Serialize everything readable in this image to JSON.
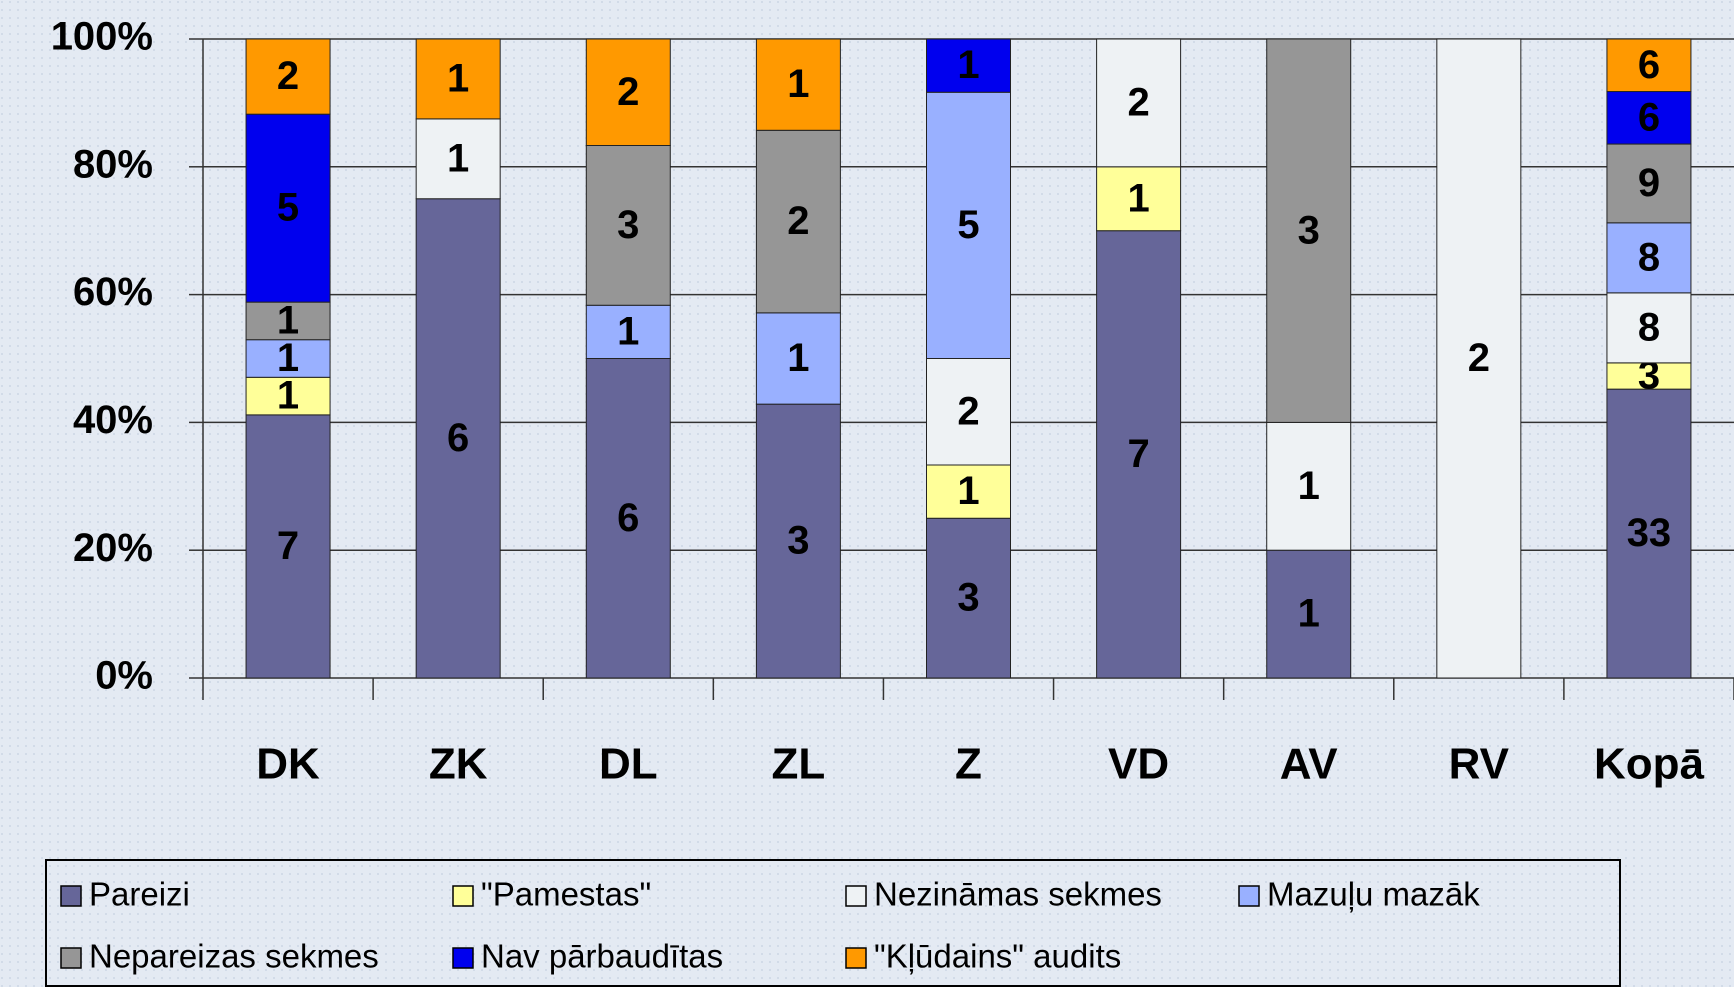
{
  "chart_data": {
    "type": "bar",
    "stacking": "percent",
    "categories": [
      "DK",
      "ZK",
      "DL",
      "ZL",
      "Z",
      "VD",
      "AV",
      "RV",
      "Kopā"
    ],
    "series": [
      {
        "name": "Pareizi",
        "color": "#666699",
        "values": [
          7,
          6,
          6,
          3,
          3,
          7,
          1,
          null,
          33
        ]
      },
      {
        "name": "\"Pamestas\"",
        "color": "#ffff99",
        "values": [
          1,
          null,
          null,
          null,
          1,
          1,
          null,
          null,
          3
        ]
      },
      {
        "name": "Nezināmas sekmes",
        "color": "#eef2f4",
        "values": [
          null,
          1,
          null,
          null,
          2,
          2,
          1,
          2,
          8
        ]
      },
      {
        "name": "Mazuļu mazāk",
        "color": "#99b0ff",
        "values": [
          1,
          null,
          1,
          1,
          5,
          null,
          null,
          null,
          8
        ]
      },
      {
        "name": "Nepareizas sekmes",
        "color": "#969696",
        "values": [
          1,
          null,
          3,
          2,
          null,
          null,
          3,
          null,
          9
        ]
      },
      {
        "name": "Nav pārbaudītas",
        "color": "#0000ee",
        "values": [
          5,
          null,
          null,
          null,
          1,
          null,
          null,
          null,
          6
        ]
      },
      {
        "name": "\"Kļūdains\" audits",
        "color": "#ff9900",
        "values": [
          2,
          1,
          2,
          1,
          null,
          null,
          null,
          null,
          6
        ]
      }
    ],
    "ylim": [
      0,
      100
    ],
    "yticks": [
      {
        "value": 0,
        "label": "0%"
      },
      {
        "value": 20,
        "label": "20%"
      },
      {
        "value": 40,
        "label": "40%"
      },
      {
        "value": 60,
        "label": "60%"
      },
      {
        "value": 80,
        "label": "80%"
      },
      {
        "value": 100,
        "label": "100%"
      }
    ],
    "grid": true,
    "legend": "bottom"
  }
}
